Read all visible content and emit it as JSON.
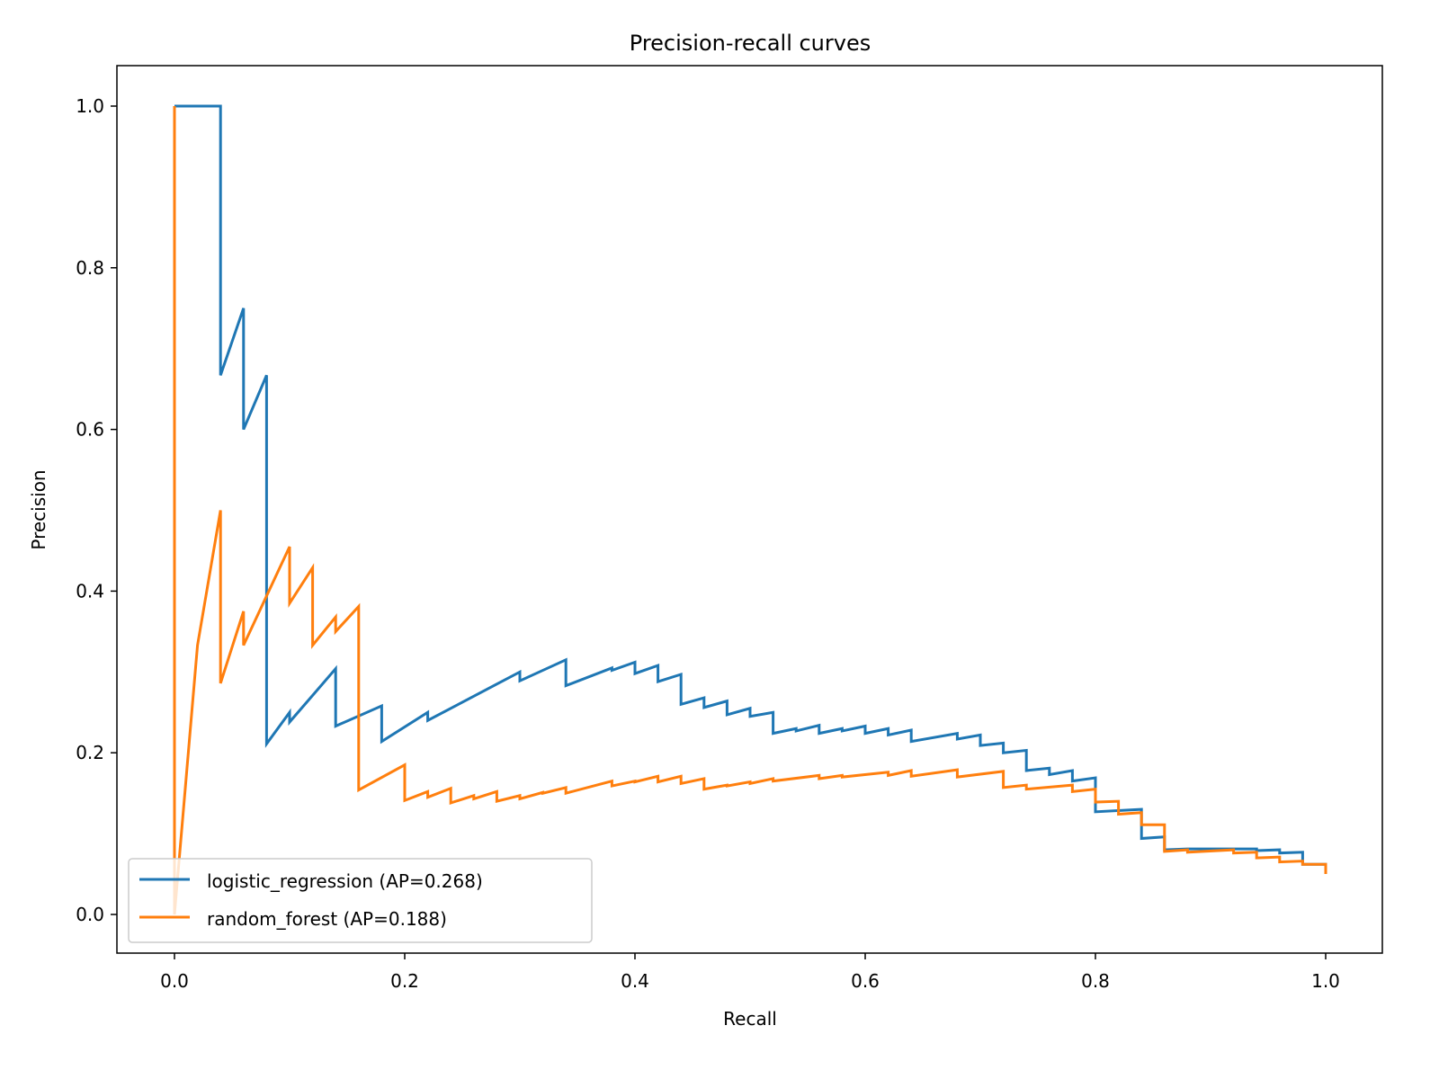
{
  "chart_data": {
    "type": "line",
    "title": "Precision-recall curves",
    "xlabel": "Recall",
    "ylabel": "Precision",
    "xlim": [
      -0.05,
      1.05
    ],
    "ylim": [
      -0.05,
      1.05
    ],
    "xticks": [
      "0.0",
      "0.2",
      "0.4",
      "0.6",
      "0.8",
      "1.0"
    ],
    "yticks": [
      "0.0",
      "0.2",
      "0.4",
      "0.6",
      "0.8",
      "1.0"
    ],
    "xtick_values": [
      0,
      0.2,
      0.4,
      0.6,
      0.8,
      1.0
    ],
    "ytick_values": [
      0,
      0.2,
      0.4,
      0.6,
      0.8,
      1.0
    ],
    "grid": false,
    "legend_position": "lower-left",
    "series": [
      {
        "name": "logistic_regression (AP=0.268)",
        "color": "#1f77b4",
        "points": [
          [
            0,
            1
          ],
          [
            0.04,
            1
          ],
          [
            0.04,
            0.667
          ],
          [
            0.06,
            0.75
          ],
          [
            0.06,
            0.6
          ],
          [
            0.08,
            0.667
          ],
          [
            0.08,
            0.211
          ],
          [
            0.1,
            0.25
          ],
          [
            0.1,
            0.238
          ],
          [
            0.14,
            0.304
          ],
          [
            0.14,
            0.233
          ],
          [
            0.18,
            0.258
          ],
          [
            0.18,
            0.214
          ],
          [
            0.22,
            0.25
          ],
          [
            0.22,
            0.24
          ],
          [
            0.3,
            0.3
          ],
          [
            0.3,
            0.289
          ],
          [
            0.34,
            0.315
          ],
          [
            0.34,
            0.283
          ],
          [
            0.38,
            0.305
          ],
          [
            0.38,
            0.302
          ],
          [
            0.4,
            0.312
          ],
          [
            0.4,
            0.298
          ],
          [
            0.42,
            0.308
          ],
          [
            0.42,
            0.288
          ],
          [
            0.44,
            0.297
          ],
          [
            0.44,
            0.26
          ],
          [
            0.46,
            0.268
          ],
          [
            0.46,
            0.256
          ],
          [
            0.48,
            0.264
          ],
          [
            0.48,
            0.247
          ],
          [
            0.5,
            0.255
          ],
          [
            0.5,
            0.245
          ],
          [
            0.52,
            0.25
          ],
          [
            0.52,
            0.224
          ],
          [
            0.54,
            0.23
          ],
          [
            0.54,
            0.227
          ],
          [
            0.56,
            0.234
          ],
          [
            0.56,
            0.224
          ],
          [
            0.58,
            0.23
          ],
          [
            0.58,
            0.227
          ],
          [
            0.6,
            0.233
          ],
          [
            0.6,
            0.224
          ],
          [
            0.62,
            0.23
          ],
          [
            0.62,
            0.222
          ],
          [
            0.64,
            0.228
          ],
          [
            0.64,
            0.214
          ],
          [
            0.68,
            0.224
          ],
          [
            0.68,
            0.217
          ],
          [
            0.7,
            0.222
          ],
          [
            0.7,
            0.209
          ],
          [
            0.72,
            0.212
          ],
          [
            0.72,
            0.2
          ],
          [
            0.74,
            0.203
          ],
          [
            0.74,
            0.178
          ],
          [
            0.76,
            0.181
          ],
          [
            0.76,
            0.173
          ],
          [
            0.78,
            0.178
          ],
          [
            0.78,
            0.165
          ],
          [
            0.8,
            0.169
          ],
          [
            0.8,
            0.127
          ],
          [
            0.84,
            0.13
          ],
          [
            0.84,
            0.094
          ],
          [
            0.86,
            0.096
          ],
          [
            0.86,
            0.08
          ],
          [
            0.88,
            0.081
          ],
          [
            0.94,
            0.081
          ],
          [
            0.94,
            0.079
          ],
          [
            0.96,
            0.08
          ],
          [
            0.96,
            0.076
          ],
          [
            0.98,
            0.077
          ],
          [
            0.98,
            0.062
          ],
          [
            1.0,
            0.062
          ],
          [
            1.0,
            0.05
          ]
        ]
      },
      {
        "name": "random_forest (AP=0.188)",
        "color": "#ff7f0e",
        "points": [
          [
            0,
            1
          ],
          [
            0,
            0
          ],
          [
            0.02,
            0.333
          ],
          [
            0.04,
            0.5
          ],
          [
            0.04,
            0.286
          ],
          [
            0.06,
            0.375
          ],
          [
            0.06,
            0.333
          ],
          [
            0.1,
            0.455
          ],
          [
            0.1,
            0.385
          ],
          [
            0.12,
            0.429
          ],
          [
            0.12,
            0.333
          ],
          [
            0.14,
            0.368
          ],
          [
            0.14,
            0.35
          ],
          [
            0.16,
            0.381
          ],
          [
            0.16,
            0.154
          ],
          [
            0.2,
            0.185
          ],
          [
            0.2,
            0.141
          ],
          [
            0.22,
            0.152
          ],
          [
            0.22,
            0.145
          ],
          [
            0.24,
            0.156
          ],
          [
            0.24,
            0.138
          ],
          [
            0.26,
            0.147
          ],
          [
            0.26,
            0.143
          ],
          [
            0.28,
            0.152
          ],
          [
            0.28,
            0.14
          ],
          [
            0.3,
            0.147
          ],
          [
            0.3,
            0.143
          ],
          [
            0.32,
            0.151
          ],
          [
            0.32,
            0.15
          ],
          [
            0.34,
            0.157
          ],
          [
            0.34,
            0.15
          ],
          [
            0.38,
            0.165
          ],
          [
            0.38,
            0.159
          ],
          [
            0.4,
            0.165
          ],
          [
            0.4,
            0.164
          ],
          [
            0.42,
            0.171
          ],
          [
            0.42,
            0.164
          ],
          [
            0.44,
            0.171
          ],
          [
            0.44,
            0.162
          ],
          [
            0.46,
            0.168
          ],
          [
            0.46,
            0.155
          ],
          [
            0.48,
            0.16
          ],
          [
            0.48,
            0.159
          ],
          [
            0.5,
            0.164
          ],
          [
            0.5,
            0.162
          ],
          [
            0.52,
            0.168
          ],
          [
            0.52,
            0.165
          ],
          [
            0.56,
            0.172
          ],
          [
            0.56,
            0.168
          ],
          [
            0.58,
            0.172
          ],
          [
            0.58,
            0.17
          ],
          [
            0.62,
            0.176
          ],
          [
            0.62,
            0.172
          ],
          [
            0.64,
            0.178
          ],
          [
            0.64,
            0.171
          ],
          [
            0.68,
            0.179
          ],
          [
            0.68,
            0.17
          ],
          [
            0.72,
            0.177
          ],
          [
            0.72,
            0.157
          ],
          [
            0.74,
            0.16
          ],
          [
            0.74,
            0.155
          ],
          [
            0.78,
            0.16
          ],
          [
            0.78,
            0.152
          ],
          [
            0.8,
            0.155
          ],
          [
            0.8,
            0.139
          ],
          [
            0.82,
            0.14
          ],
          [
            0.82,
            0.124
          ],
          [
            0.84,
            0.126
          ],
          [
            0.84,
            0.111
          ],
          [
            0.86,
            0.111
          ],
          [
            0.86,
            0.078
          ],
          [
            0.88,
            0.08
          ],
          [
            0.88,
            0.077
          ],
          [
            0.92,
            0.08
          ],
          [
            0.92,
            0.076
          ],
          [
            0.94,
            0.077
          ],
          [
            0.94,
            0.07
          ],
          [
            0.96,
            0.071
          ],
          [
            0.96,
            0.065
          ],
          [
            0.98,
            0.066
          ],
          [
            0.98,
            0.062
          ],
          [
            1.0,
            0.062
          ],
          [
            1.0,
            0.05
          ]
        ]
      }
    ]
  }
}
